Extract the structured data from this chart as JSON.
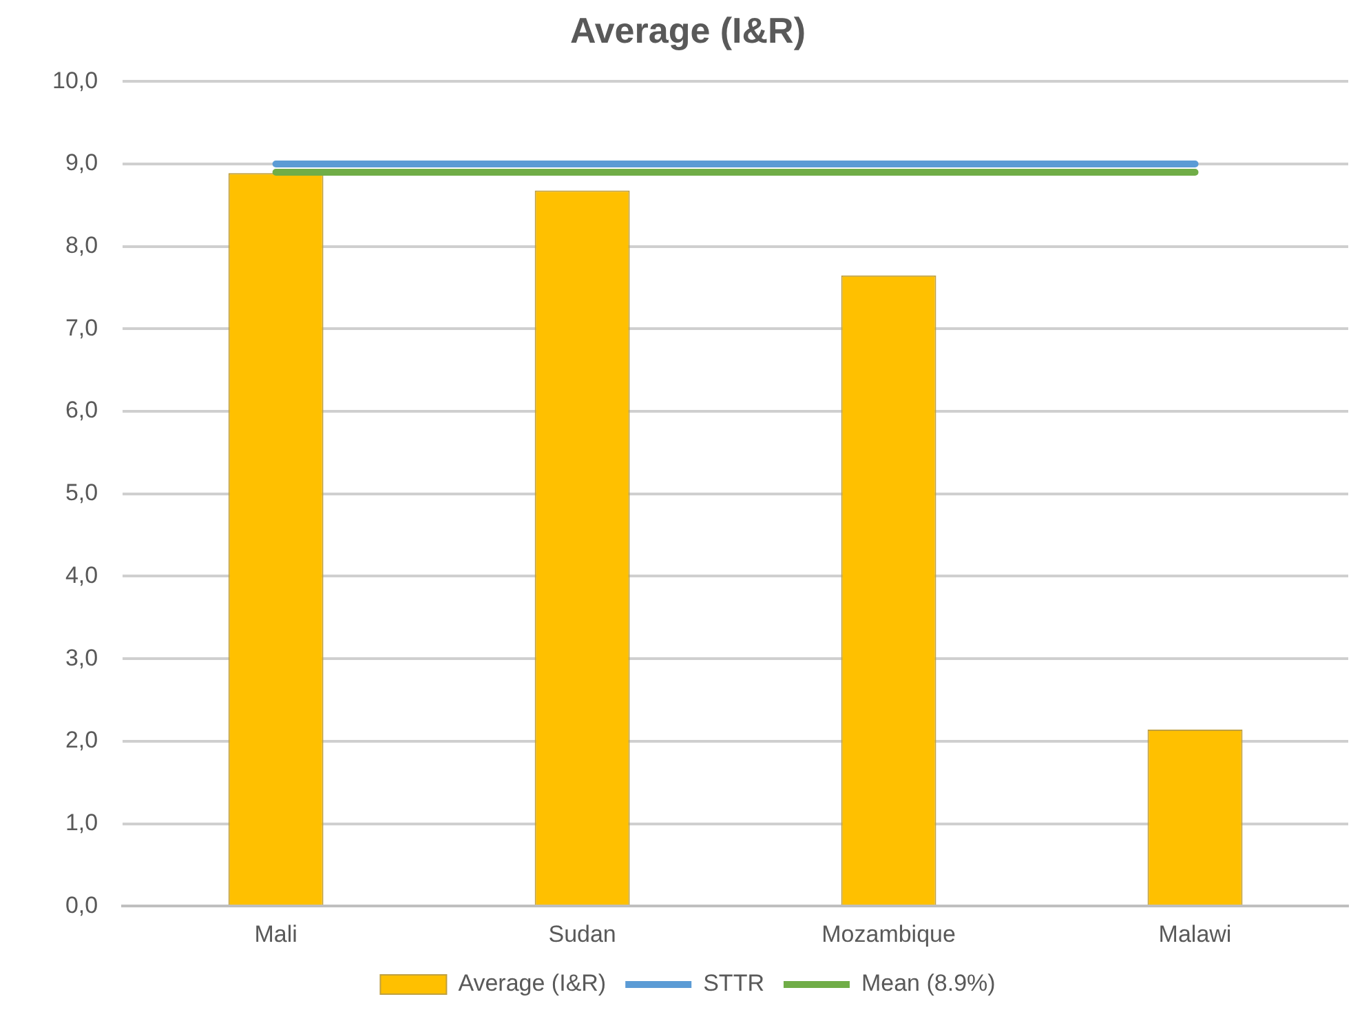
{
  "chart_data": {
    "type": "bar",
    "title": "Average (I&R)",
    "categories": [
      "Mali",
      "Sudan",
      "Mozambique",
      "Malawi"
    ],
    "series": [
      {
        "name": "Average (I&R)",
        "color": "#ffc000",
        "values": [
          8.89,
          8.68,
          7.65,
          2.14
        ]
      },
      {
        "name": "STTR",
        "type": "line",
        "color": "#5b9bd5",
        "values": [
          9.0,
          9.0,
          9.0,
          9.0
        ]
      },
      {
        "name": "Mean (8.9%)",
        "type": "line",
        "color": "#70ad47",
        "values": [
          8.9,
          8.9,
          8.9,
          8.9
        ]
      }
    ],
    "ylim": [
      0,
      10
    ],
    "yticks": [
      {
        "value": 0,
        "label": "0,0"
      },
      {
        "value": 1,
        "label": "1,0"
      },
      {
        "value": 2,
        "label": "2,0"
      },
      {
        "value": 3,
        "label": "3,0"
      },
      {
        "value": 4,
        "label": "4,0"
      },
      {
        "value": 5,
        "label": "5,0"
      },
      {
        "value": 6,
        "label": "6,0"
      },
      {
        "value": 7,
        "label": "7,0"
      },
      {
        "value": 8,
        "label": "8,0"
      },
      {
        "value": 9,
        "label": "9,0"
      },
      {
        "value": 10,
        "label": "10,0"
      }
    ],
    "grid": "y",
    "legend": "bottom",
    "marker": "none"
  }
}
